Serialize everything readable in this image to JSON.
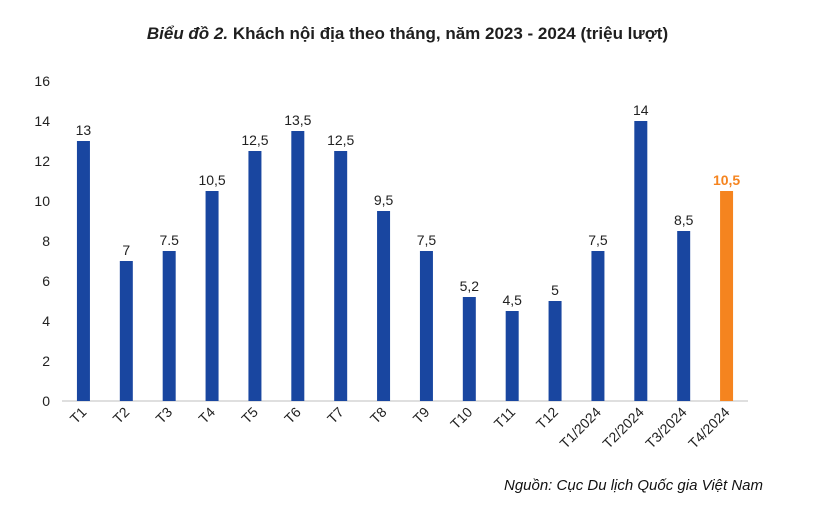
{
  "title_prefix": "Biểu đồ 2.",
  "title_main": " Khách nội địa theo tháng, năm 2023 - 2024 (triệu lượt)",
  "source": "Nguồn: Cục Du lịch Quốc gia Việt Nam",
  "colors": {
    "bar": "#1946a0",
    "highlight": "#f5841f",
    "label": "#222222",
    "highlight_label": "#f5841f",
    "axis": "#bfbfbf"
  },
  "chart_data": {
    "type": "bar",
    "title": "Biểu đồ 2. Khách nội địa theo tháng, năm 2023 - 2024 (triệu lượt)",
    "xlabel": "",
    "ylabel": "",
    "ylim": [
      0,
      16
    ],
    "yticks": [
      "0",
      "2",
      "4",
      "6",
      "8",
      "10",
      "12",
      "14",
      "16"
    ],
    "categories": [
      "T1",
      "T2",
      "T3",
      "T4",
      "T5",
      "T6",
      "T7",
      "T8",
      "T9",
      "T10",
      "T11",
      "T12",
      "T1/2024",
      "T2/2024",
      "T3/2024",
      "T4/2024"
    ],
    "values": [
      13,
      7,
      7.5,
      10.5,
      12.5,
      13.5,
      12.5,
      9.5,
      7.5,
      5.2,
      4.5,
      5,
      7.5,
      14,
      8.5,
      10.5
    ],
    "value_labels": [
      "13",
      "7",
      "7.5",
      "10,5",
      "12,5",
      "13,5",
      "12,5",
      "9,5",
      "7,5",
      "5,2",
      "4,5",
      "5",
      "7,5",
      "14",
      "8,5",
      "10,5"
    ],
    "highlight_index": 15,
    "grid": false
  }
}
